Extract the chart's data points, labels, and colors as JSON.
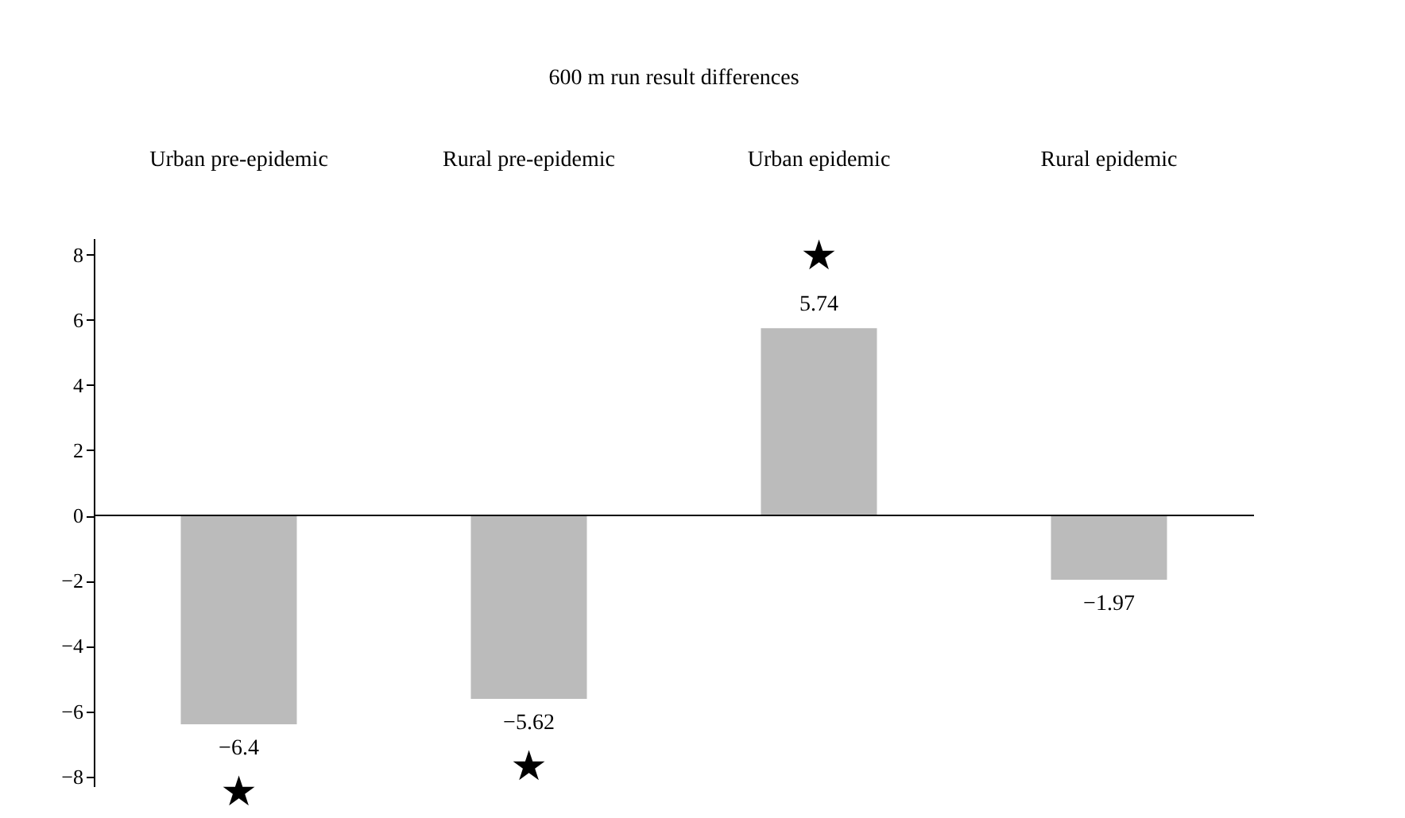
{
  "chart_data": {
    "type": "bar",
    "title": "600 m run result differences",
    "categories": [
      "Urban pre-epidemic",
      "Rural pre-epidemic",
      "Urban epidemic",
      "Rural epidemic"
    ],
    "values": [
      -6.4,
      -5.62,
      5.74,
      -1.97
    ],
    "value_labels": [
      "−6.4",
      "−5.62",
      "5.74",
      "−1.97"
    ],
    "color": "#bbbbbb",
    "ylim": [
      -8.3,
      8.5
    ],
    "yticks": [
      {
        "value": -8,
        "label": "−8"
      },
      {
        "value": -6,
        "label": "−6"
      },
      {
        "value": -4,
        "label": "−4"
      },
      {
        "value": -2,
        "label": "−2"
      },
      0,
      2,
      4,
      6,
      8
    ],
    "ref_lines": [
      {
        "axis": "y",
        "value": 0,
        "color": "#000000"
      }
    ],
    "annotations": [
      "★",
      "★",
      "★"
    ],
    "grid": false
  }
}
